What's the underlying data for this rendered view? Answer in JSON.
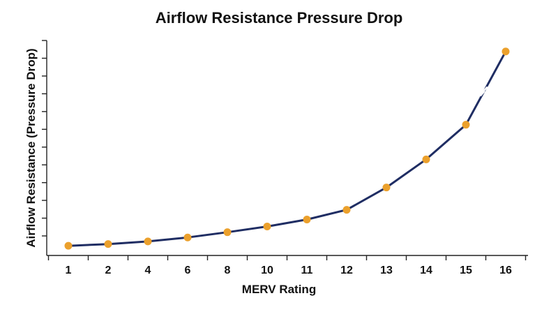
{
  "chart_data": {
    "type": "line",
    "title": "Airflow Resistance Pressure Drop",
    "xlabel": "MERV Rating",
    "ylabel": "Airflow Resistance (Pressure Drop)",
    "categories": [
      "1",
      "2",
      "4",
      "6",
      "8",
      "10",
      "11",
      "12",
      "13",
      "14",
      "15",
      "16"
    ],
    "series": [
      {
        "values": [
          0.2,
          0.6,
          1.2,
          2.1,
          3.3,
          4.6,
          6.2,
          8.4,
          13.5,
          19.9,
          27.8,
          44.5
        ]
      }
    ],
    "ylim": [
      -2,
      47
    ],
    "y_tick_labels_shown": false,
    "y_tick_count": 12,
    "grid": false,
    "legend": "none",
    "break_mark_between": [
      "15",
      "16"
    ],
    "colors": {
      "line": "#1f2d63",
      "marker": "#eba02c",
      "axis": "#222222",
      "text": "#111111"
    }
  }
}
